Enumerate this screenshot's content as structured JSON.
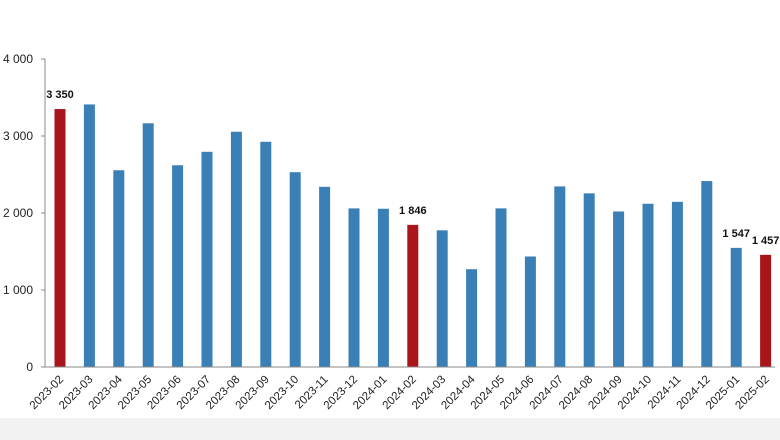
{
  "chart_data": {
    "type": "bar",
    "title": "",
    "xlabel": "",
    "ylabel": "",
    "ylim": [
      0,
      4000
    ],
    "yticks": [
      0,
      1000,
      2000,
      3000,
      4000
    ],
    "ytick_labels": [
      "0",
      "1 000",
      "2 000",
      "3 000",
      "4 000"
    ],
    "grid": false,
    "legend": "none",
    "categories": [
      "2023-02",
      "2023-03",
      "2023-04",
      "2023-05",
      "2023-06",
      "2023-07",
      "2023-08",
      "2023-09",
      "2023-10",
      "2023-11",
      "2023-12",
      "2024-01",
      "2024-02",
      "2024-03",
      "2024-04",
      "2024-05",
      "2024-06",
      "2024-07",
      "2024-08",
      "2024-09",
      "2024-10",
      "2024-11",
      "2024-12",
      "2025-01",
      "2025-02"
    ],
    "values": [
      3350,
      3410,
      2555,
      3165,
      2620,
      2795,
      3055,
      2925,
      2530,
      2340,
      2060,
      2055,
      1846,
      1775,
      1270,
      2060,
      1435,
      2345,
      2255,
      2020,
      2120,
      2145,
      2415,
      1547,
      1457
    ],
    "highlight_color": "#a8161c",
    "default_color": "#3a7fb5",
    "highlighted": [
      true,
      false,
      false,
      false,
      false,
      false,
      false,
      false,
      false,
      false,
      false,
      false,
      true,
      false,
      false,
      false,
      false,
      false,
      false,
      false,
      false,
      false,
      false,
      false,
      true
    ],
    "data_labels": [
      {
        "index": 0,
        "text": "3 350"
      },
      {
        "index": 12,
        "text": "1 846"
      },
      {
        "index": 23,
        "text": "1 547"
      },
      {
        "index": 24,
        "text": "1 457"
      }
    ]
  }
}
